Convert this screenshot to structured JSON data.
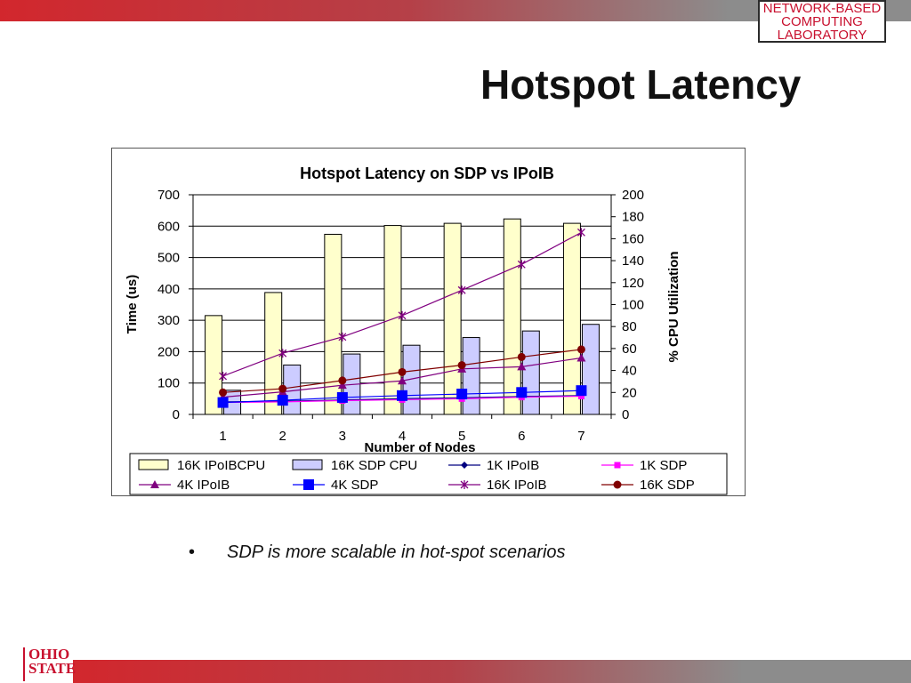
{
  "slide": {
    "title": "Hotspot Latency",
    "bullet_marker": "•",
    "bullet": "SDP is more scalable in hot-spot scenarios"
  },
  "logos": {
    "lab": [
      "NETWORK-BASED",
      "COMPUTING",
      "LABORATORY"
    ],
    "university": [
      "OHIO",
      "STATE"
    ]
  },
  "colors": {
    "accent_red": "#d2272d",
    "bar_fill_ipoib": "#ffffcc",
    "bar_fill_sdp": "#ccccff"
  },
  "chart_data": {
    "type": "bar",
    "title": "Hotspot Latency on SDP vs IPoIB",
    "xlabel": "Number of Nodes",
    "ylabel": "Time (us)",
    "y2label": "% CPU Utilization",
    "categories": [
      "1",
      "2",
      "3",
      "4",
      "5",
      "6",
      "7"
    ],
    "ylim": [
      0,
      700
    ],
    "y2lim": [
      0,
      200
    ],
    "yticks": [
      "0",
      "100",
      "200",
      "300",
      "400",
      "500",
      "600",
      "700"
    ],
    "y2ticks": [
      "0",
      "20",
      "40",
      "60",
      "80",
      "100",
      "120",
      "140",
      "160",
      "180",
      "200"
    ],
    "grid": true,
    "legend_position": "bottom",
    "bar_series": [
      {
        "name": "16K IPoIBCPU",
        "axis": "y2",
        "color": "#ffffcc",
        "values": [
          90,
          111,
          164,
          172,
          174,
          178,
          174
        ]
      },
      {
        "name": "16K SDP CPU",
        "axis": "y2",
        "color": "#ccccff",
        "values": [
          22,
          45,
          55,
          63,
          70,
          76,
          82
        ]
      }
    ],
    "line_series": [
      {
        "name": "1K IPoIB",
        "axis": "y",
        "color": "#000080",
        "marker": "diamond",
        "values": [
          40,
          42,
          46,
          50,
          53,
          57,
          60
        ]
      },
      {
        "name": "1K SDP",
        "axis": "y",
        "color": "#ff00ff",
        "marker": "square",
        "values": [
          38,
          40,
          44,
          47,
          50,
          55,
          58
        ]
      },
      {
        "name": "4K IPoIB",
        "axis": "y",
        "color": "#800080",
        "marker": "triangle",
        "values": [
          55,
          72,
          93,
          107,
          145,
          152,
          180
        ]
      },
      {
        "name": "4K SDP",
        "axis": "y",
        "color": "#0000ff",
        "marker": "square-large",
        "values": [
          38,
          45,
          54,
          60,
          65,
          70,
          76
        ]
      },
      {
        "name": "16K IPoIB",
        "axis": "y",
        "color": "#800080",
        "marker": "star",
        "values": [
          122,
          195,
          247,
          315,
          396,
          478,
          580
        ]
      },
      {
        "name": "16K SDP",
        "axis": "y",
        "color": "#800000",
        "marker": "circle",
        "values": [
          70,
          82,
          108,
          135,
          157,
          183,
          207
        ]
      }
    ]
  }
}
